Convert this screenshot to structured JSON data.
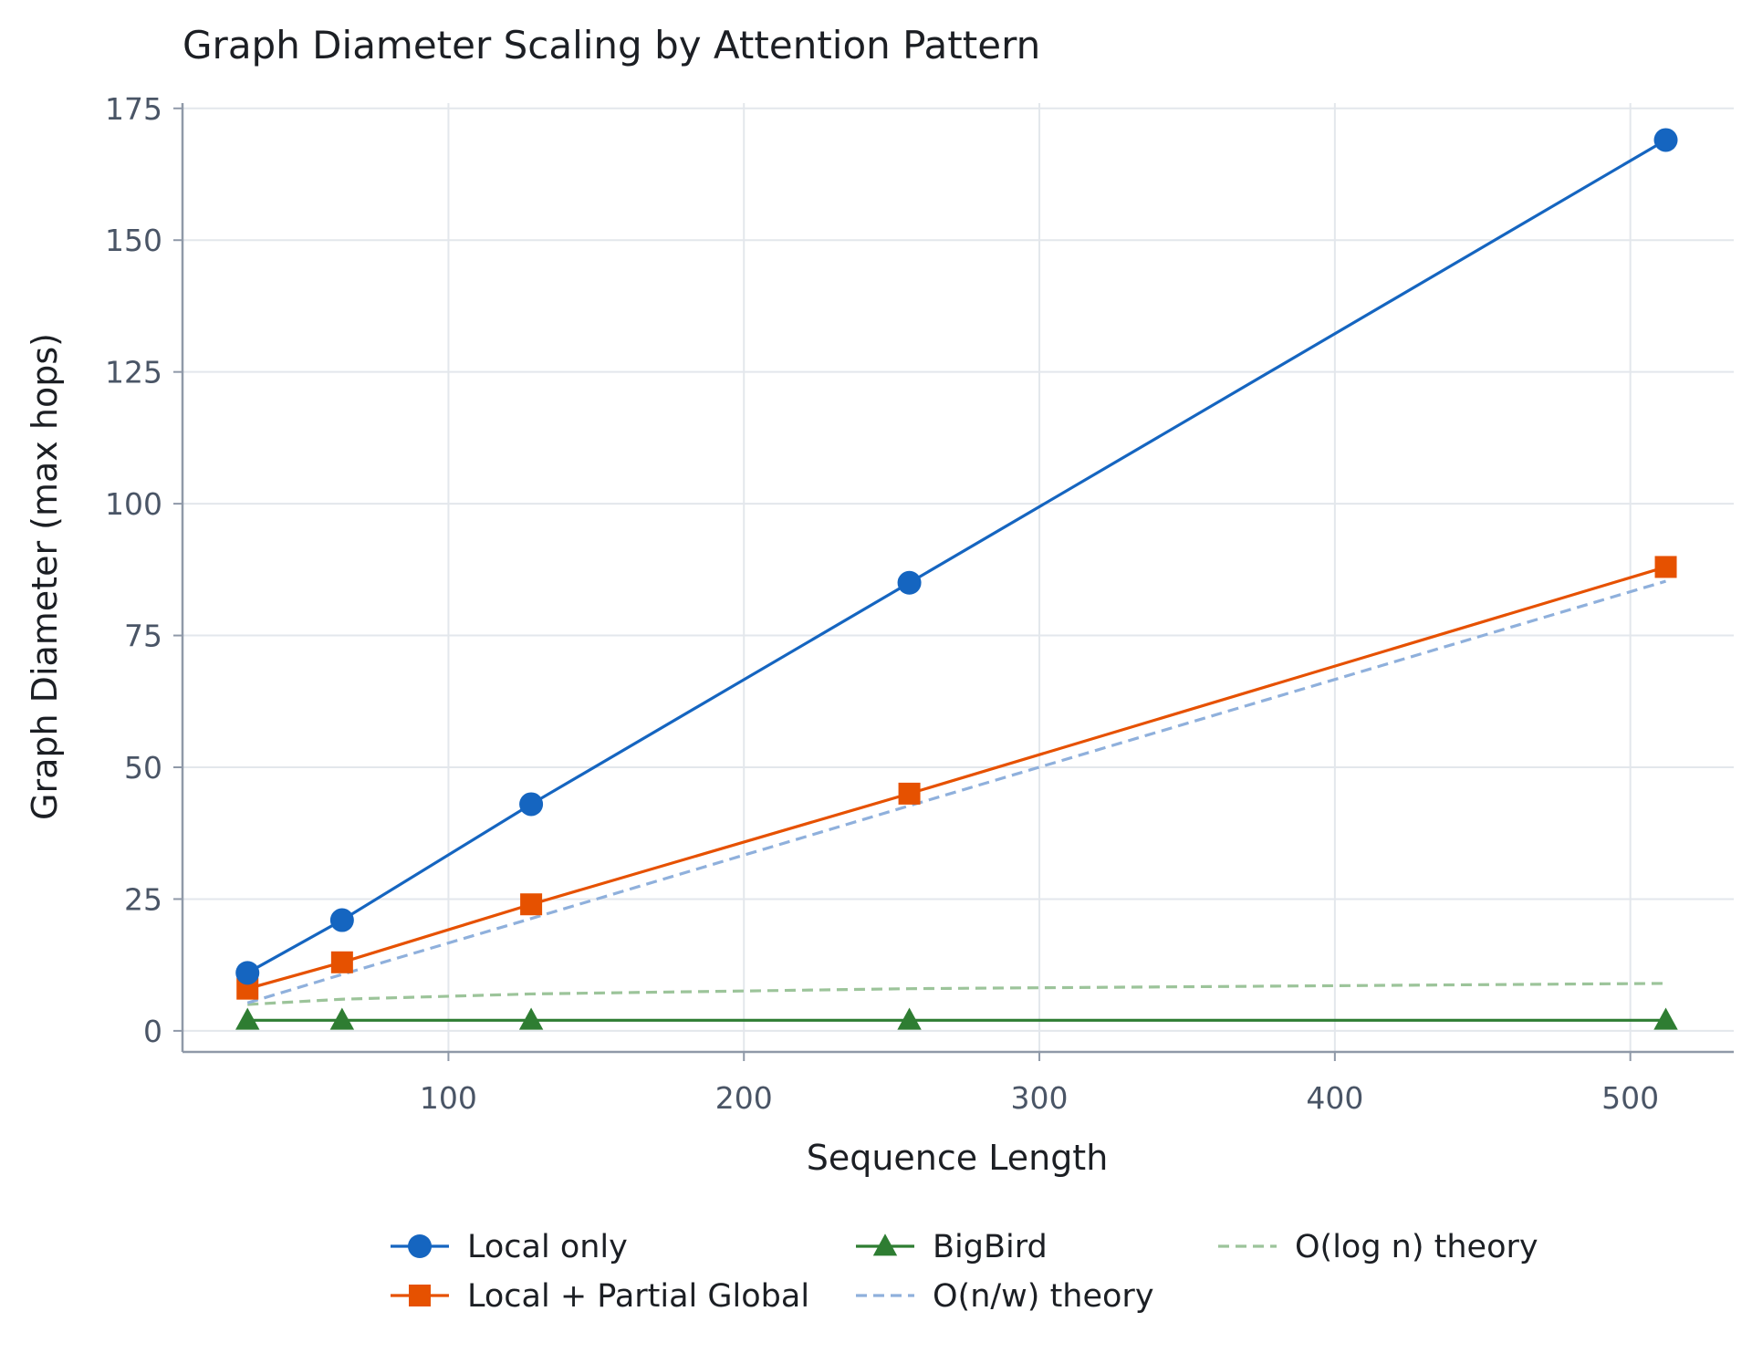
{
  "chart_data": {
    "type": "line",
    "title": "Graph Diameter Scaling by Attention Pattern",
    "xlabel": "Sequence Length",
    "ylabel": "Graph Diameter (max hops)",
    "xlim": [
      10,
      535
    ],
    "ylim": [
      -4,
      176
    ],
    "xticks": [
      100,
      200,
      300,
      400,
      500
    ],
    "yticks": [
      0,
      25,
      50,
      75,
      100,
      125,
      150,
      175
    ],
    "grid": true,
    "legend_position": "bottom",
    "series": [
      {
        "name": "Local only",
        "x": [
          32,
          64,
          128,
          256,
          512
        ],
        "values": [
          11,
          21,
          43,
          85,
          169
        ],
        "color": "#1565c0",
        "marker": "circle",
        "line_style": "solid"
      },
      {
        "name": "Local + Partial Global",
        "x": [
          32,
          64,
          128,
          256,
          512
        ],
        "values": [
          8,
          13,
          24,
          45,
          88
        ],
        "color": "#e65100",
        "marker": "square",
        "line_style": "solid"
      },
      {
        "name": "BigBird",
        "x": [
          32,
          64,
          128,
          256,
          512
        ],
        "values": [
          2,
          2,
          2,
          2,
          2
        ],
        "color": "#2e7d32",
        "marker": "triangle",
        "line_style": "solid"
      },
      {
        "name": "O(n/w) theory",
        "x": [
          32,
          64,
          128,
          256,
          512
        ],
        "values": [
          5.3,
          10.7,
          21.3,
          42.7,
          85.3
        ],
        "color": "#8fb0dc",
        "marker": "none",
        "line_style": "dashed"
      },
      {
        "name": "O(log n) theory",
        "x": [
          32,
          64,
          128,
          256,
          512
        ],
        "values": [
          5,
          6,
          7,
          8,
          9
        ],
        "color": "#9cc49a",
        "marker": "none",
        "line_style": "dashed"
      }
    ]
  }
}
